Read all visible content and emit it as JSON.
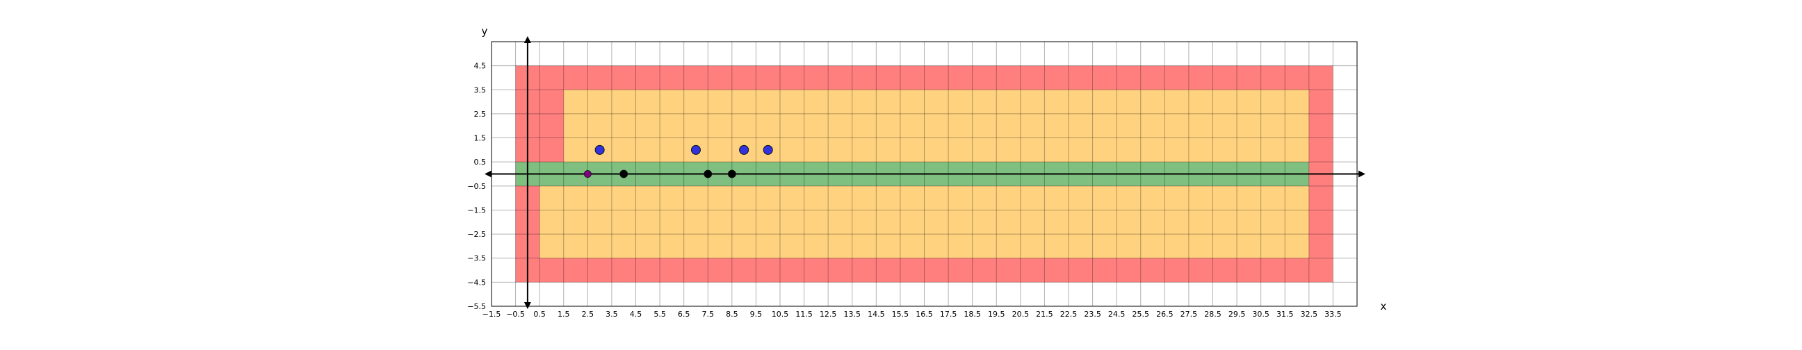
{
  "chart_data": {
    "type": "scatter",
    "title": "",
    "xlabel": "x",
    "ylabel": "y",
    "xlim": [
      -1.5,
      34.5
    ],
    "ylim": [
      -5.5,
      5.5
    ],
    "grid": true,
    "x_ticks": [
      -1.5,
      -0.5,
      0.5,
      1.5,
      2.5,
      3.5,
      4.5,
      5.5,
      6.5,
      7.5,
      8.5,
      9.5,
      10.5,
      11.5,
      12.5,
      13.5,
      14.5,
      15.5,
      16.5,
      17.5,
      18.5,
      19.5,
      20.5,
      21.5,
      22.5,
      23.5,
      24.5,
      25.5,
      26.5,
      27.5,
      28.5,
      29.5,
      30.5,
      31.5,
      32.5,
      33.5
    ],
    "x_tick_labels": [
      "−1.5",
      "−0.5",
      "0.5",
      "1.5",
      "2.5",
      "3.5",
      "4.5",
      "5.5",
      "6.5",
      "7.5",
      "8.5",
      "9.5",
      "10.5",
      "11.5",
      "12.5",
      "13.5",
      "14.5",
      "15.5",
      "16.5",
      "17.5",
      "18.5",
      "19.5",
      "20.5",
      "21.5",
      "22.5",
      "23.5",
      "24.5",
      "25.5",
      "26.5",
      "27.5",
      "28.5",
      "29.5",
      "30.5",
      "31.5",
      "32.5",
      "33.5"
    ],
    "y_ticks": [
      4.5,
      3.5,
      2.5,
      1.5,
      0.5,
      -0.5,
      -1.5,
      -2.5,
      -3.5,
      -4.5,
      -5.5
    ],
    "y_tick_labels": [
      "4.5",
      "3.5",
      "2.5",
      "1.5",
      "0.5",
      "−0.5",
      "−1.5",
      "−2.5",
      "−3.5",
      "−4.5",
      "−5.5"
    ],
    "regions": [
      {
        "color": "#ff7f7f",
        "x": [
          -0.5,
          33.5
        ],
        "y": [
          -4.5,
          4.5
        ]
      },
      {
        "color": "#ffd27f",
        "x": [
          1.5,
          32.5
        ],
        "y": [
          0.5,
          3.5
        ]
      },
      {
        "color": "#ffd27f",
        "x": [
          0.5,
          32.5
        ],
        "y": [
          -3.5,
          -0.5
        ]
      },
      {
        "color": "#7fbf7f",
        "x": [
          -0.5,
          32.5
        ],
        "y": [
          -0.5,
          0.5
        ]
      }
    ],
    "series": [
      {
        "color": "#3333dd",
        "points": [
          [
            3,
            1
          ],
          [
            7,
            1
          ],
          [
            9,
            1
          ],
          [
            10,
            1
          ]
        ]
      },
      {
        "color": "#000000",
        "points": [
          [
            4,
            0
          ],
          [
            7.5,
            0
          ],
          [
            8.5,
            0
          ]
        ]
      },
      {
        "color": "#800080",
        "points": [
          [
            2.5,
            0
          ]
        ]
      }
    ],
    "origin_axes": {
      "x": 0,
      "y": 0
    }
  }
}
